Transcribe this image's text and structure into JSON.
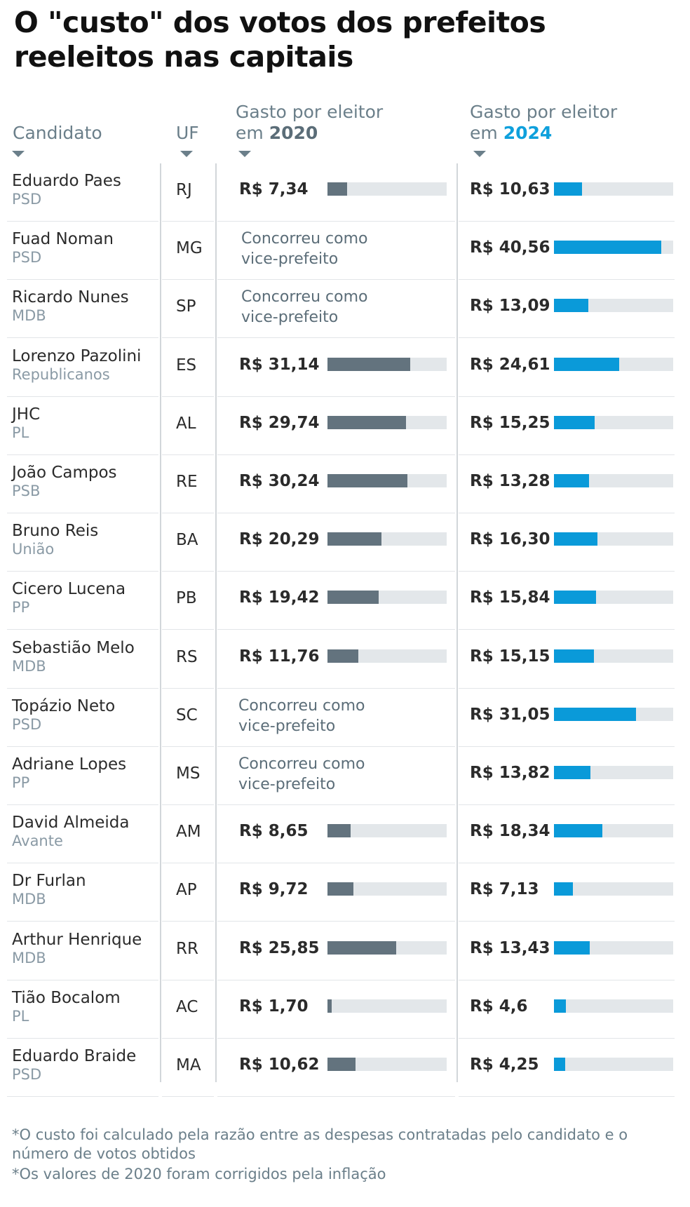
{
  "title": "O \"custo\" dos votos dos prefeitos reeleitos nas capitais",
  "headers": {
    "candidate": "Candidato",
    "uf": "UF",
    "spend_prefix": "Gasto por eleitor",
    "em": "em",
    "year_2020": "2020",
    "year_2024": "2024"
  },
  "colors": {
    "bar_2020": "#63737e",
    "bar_2024": "#0a9ad9",
    "track": "#e3e7ea",
    "accent_2024": "#0fa0dc"
  },
  "vice_text": "Concorreu como vice-prefeito",
  "chart_data": {
    "type": "table",
    "columns": [
      "Candidato",
      "UF",
      "Gasto por eleitor em 2020",
      "Gasto por eleitor em 2024"
    ],
    "bar_max": 45,
    "rows": [
      {
        "name": "Eduardo Paes",
        "party": "PSD",
        "uf": "RJ",
        "v2020": 7.34,
        "l2020": "R$ 7,34",
        "v2024": 10.63,
        "l2024": "R$ 10,63"
      },
      {
        "name": "Fuad Noman",
        "party": "PSD",
        "uf": "MG",
        "v2020": null,
        "l2020": "Concorreu como vice-prefeito",
        "v2024": 40.56,
        "l2024": "R$ 40,56"
      },
      {
        "name": "Ricardo Nunes",
        "party": "MDB",
        "uf": "SP",
        "v2020": null,
        "l2020": "Concorreu como vice-prefeito",
        "v2024": 13.09,
        "l2024": "R$ 13,09"
      },
      {
        "name": "Lorenzo Pazolini",
        "party": "Republicanos",
        "uf": "ES",
        "v2020": 31.14,
        "l2020": "R$ 31,14",
        "v2024": 24.61,
        "l2024": "R$ 24,61"
      },
      {
        "name": "JHC",
        "party": "PL",
        "uf": "AL",
        "v2020": 29.74,
        "l2020": "R$ 29,74",
        "v2024": 15.25,
        "l2024": "R$ 15,25"
      },
      {
        "name": "João Campos",
        "party": "PSB",
        "uf": "RE",
        "v2020": 30.24,
        "l2020": "R$ 30,24",
        "v2024": 13.28,
        "l2024": "R$ 13,28"
      },
      {
        "name": "Bruno Reis",
        "party": "União",
        "uf": "BA",
        "v2020": 20.29,
        "l2020": "R$ 20,29",
        "v2024": 16.3,
        "l2024": "R$ 16,30"
      },
      {
        "name": "Cicero Lucena",
        "party": "PP",
        "uf": "PB",
        "v2020": 19.42,
        "l2020": "R$ 19,42",
        "v2024": 15.84,
        "l2024": "R$ 15,84"
      },
      {
        "name": "Sebastião Melo",
        "party": "MDB",
        "uf": "RS",
        "v2020": 11.76,
        "l2020": "R$ 11,76",
        "v2024": 15.15,
        "l2024": "R$ 15,15"
      },
      {
        "name": "Topázio Neto",
        "party": "PSD",
        "uf": "SC",
        "v2020": null,
        "l2020": "Concorreu como vice-prefeito",
        "v2024": 31.05,
        "l2024": "R$ 31,05"
      },
      {
        "name": "Adriane Lopes",
        "party": "PP",
        "uf": "MS",
        "v2020": null,
        "l2020": "Concorreu como vice-prefeito",
        "v2024": 13.82,
        "l2024": "R$ 13,82"
      },
      {
        "name": "David Almeida",
        "party": "Avante",
        "uf": "AM",
        "v2020": 8.65,
        "l2020": "R$ 8,65",
        "v2024": 18.34,
        "l2024": "R$ 18,34"
      },
      {
        "name": "Dr Furlan",
        "party": "MDB",
        "uf": "AP",
        "v2020": 9.72,
        "l2020": "R$ 9,72",
        "v2024": 7.13,
        "l2024": "R$ 7,13"
      },
      {
        "name": "Arthur Henrique",
        "party": "MDB",
        "uf": "RR",
        "v2020": 25.85,
        "l2020": "R$ 25,85",
        "v2024": 13.43,
        "l2024": "R$ 13,43"
      },
      {
        "name": "Tião Bocalom",
        "party": "PL",
        "uf": "AC",
        "v2020": 1.7,
        "l2020": "R$ 1,70",
        "v2024": 4.6,
        "l2024": "R$ 4,6"
      },
      {
        "name": "Eduardo Braide",
        "party": "PSD",
        "uf": "MA",
        "v2020": 10.62,
        "l2020": "R$ 10,62",
        "v2024": 4.25,
        "l2024": "R$ 4,25"
      }
    ]
  },
  "footnotes": [
    "*O custo foi calculado pela razão entre as despesas contratadas pelo candidato e o número de votos obtidos",
    "*Os valores de 2020 foram corrigidos pela inflação"
  ]
}
